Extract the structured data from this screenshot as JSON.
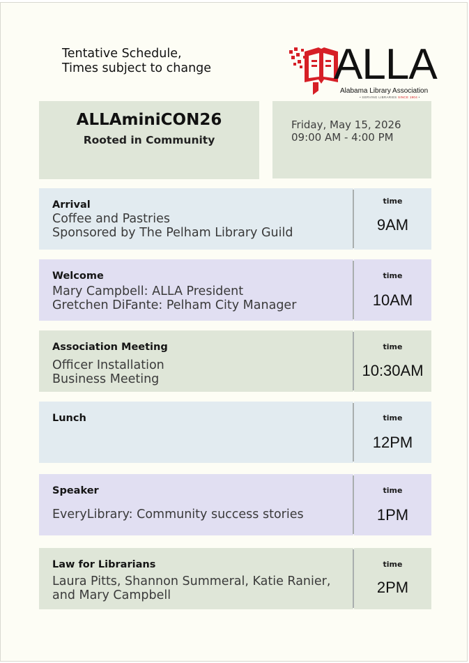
{
  "header": {
    "note_lines": [
      "Tentative Schedule,",
      "Times subject to change"
    ],
    "logo": {
      "wordmark": "ALLA",
      "org_name": "Alabama Library Association",
      "tagline_prefix": "• SERVING LIBRARIES ",
      "tagline_since": "SINCE 1904",
      "tagline_suffix": " •"
    }
  },
  "event": {
    "title": "ALLAminiCON26",
    "theme": "Rooted in Community",
    "date": "Friday, May 15, 2026",
    "hours": "09:00 AM - 4:00 PM"
  },
  "colors": {
    "brand_red": "#d61f26",
    "box_green": "#dfe6d8",
    "box_blue": "#e2ebf0",
    "box_purple": "#e1dff2"
  },
  "time_label": "time",
  "schedule": [
    {
      "title": "Arrival",
      "lines": [
        "Coffee and Pastries",
        "Sponsored by The Pelham Library Guild"
      ],
      "time": "9AM"
    },
    {
      "title": "Welcome",
      "lines": [
        "Mary Campbell: ALLA President",
        "Gretchen DiFante: Pelham City Manager"
      ],
      "time": "10AM"
    },
    {
      "title": "Association Meeting",
      "lines": [
        "Officer Installation",
        "Business Meeting"
      ],
      "time": "10:30AM"
    },
    {
      "title": "Lunch",
      "lines": [],
      "time": "12PM"
    },
    {
      "title": "Speaker",
      "lines": [
        "EveryLibrary: Community success stories"
      ],
      "time": "1PM"
    },
    {
      "title": "Law for Librarians",
      "lines": [
        "Laura Pitts, Shannon Summeral, Katie Ranier,",
        "and Mary Campbell"
      ],
      "time": "2PM"
    }
  ]
}
